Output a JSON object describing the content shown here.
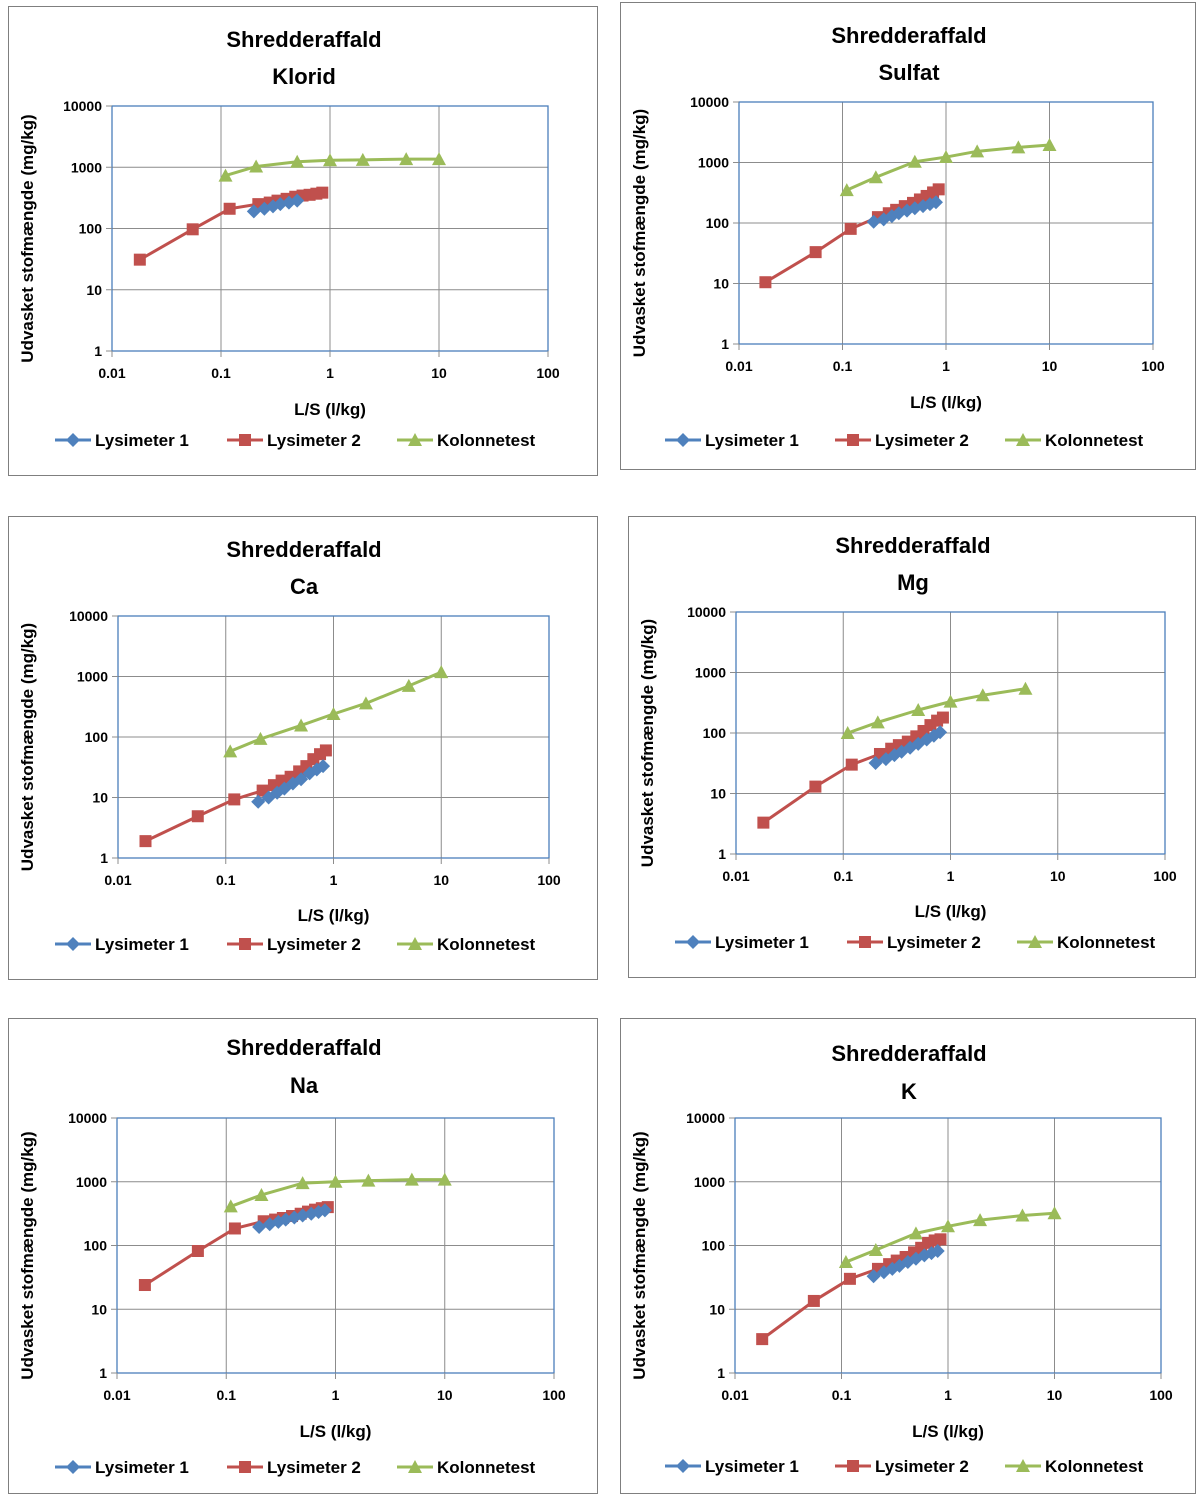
{
  "series_styles": [
    {
      "name": "Lysimeter 1",
      "color": "#4f81bd",
      "marker": "diamond"
    },
    {
      "name": "Lysimeter 2",
      "color": "#c0504d",
      "marker": "square"
    },
    {
      "name": "Kolonnetest",
      "color": "#9bbb59",
      "marker": "triangle"
    }
  ],
  "chart_data": [
    {
      "type": "line",
      "title": [
        "Shredderaffald",
        "Klorid"
      ],
      "xlabel": "L/S (l/kg)",
      "ylabel": "Udvasket stofmængde (mg/kg)",
      "xscale": "log",
      "yscale": "log",
      "xlim": [
        0.01,
        100
      ],
      "ylim": [
        1,
        10000
      ],
      "xticks": [
        "0.01",
        "0.1",
        "1",
        "10",
        "100"
      ],
      "yticks": [
        "1",
        "10",
        "100",
        "1000",
        "10000"
      ],
      "grid": true,
      "legend": "bottom",
      "series": [
        {
          "name": "Lysimeter 1",
          "x": [
            0.2,
            0.25,
            0.3,
            0.35,
            0.42,
            0.5
          ],
          "y": [
            190,
            210,
            230,
            250,
            265,
            285
          ]
        },
        {
          "name": "Lysimeter 2",
          "x": [
            0.018,
            0.055,
            0.12,
            0.22,
            0.28,
            0.33,
            0.4,
            0.48,
            0.56,
            0.65,
            0.75,
            0.85
          ],
          "y": [
            31,
            97,
            210,
            250,
            265,
            285,
            305,
            330,
            345,
            355,
            370,
            385
          ]
        },
        {
          "name": "Kolonnetest",
          "x": [
            0.11,
            0.21,
            0.5,
            1,
            2,
            5,
            10
          ],
          "y": [
            730,
            1030,
            1230,
            1300,
            1320,
            1360,
            1360
          ]
        }
      ]
    },
    {
      "type": "line",
      "title": [
        "Shredderaffald",
        "Sulfat"
      ],
      "xlabel": "L/S (l/kg)",
      "ylabel": "Udvasket stofmængde (mg/kg)",
      "xscale": "log",
      "yscale": "log",
      "xlim": [
        0.01,
        100
      ],
      "ylim": [
        1,
        10000
      ],
      "xticks": [
        "0.01",
        "0.1",
        "1",
        "10",
        "100"
      ],
      "yticks": [
        "1",
        "10",
        "100",
        "1000",
        "10000"
      ],
      "grid": true,
      "legend": "bottom",
      "series": [
        {
          "name": "Lysimeter 1",
          "x": [
            0.2,
            0.25,
            0.3,
            0.35,
            0.42,
            0.5,
            0.6,
            0.7,
            0.8
          ],
          "y": [
            105,
            115,
            130,
            145,
            160,
            175,
            190,
            205,
            220
          ]
        },
        {
          "name": "Lysimeter 2",
          "x": [
            0.018,
            0.055,
            0.12,
            0.22,
            0.28,
            0.33,
            0.4,
            0.48,
            0.56,
            0.65,
            0.75,
            0.85
          ],
          "y": [
            10.5,
            33,
            80,
            125,
            145,
            165,
            190,
            215,
            245,
            280,
            320,
            360
          ]
        },
        {
          "name": "Kolonnetest",
          "x": [
            0.11,
            0.21,
            0.5,
            1,
            2,
            5,
            10
          ],
          "y": [
            350,
            570,
            1030,
            1230,
            1530,
            1780,
            1950
          ]
        }
      ]
    },
    {
      "type": "line",
      "title": [
        "Shredderaffald",
        "Ca"
      ],
      "xlabel": "L/S (l/kg)",
      "ylabel": "Udvasket stofmængde (mg/kg)",
      "xscale": "log",
      "yscale": "log",
      "xlim": [
        0.01,
        100
      ],
      "ylim": [
        1,
        10000
      ],
      "xticks": [
        "0.01",
        "0.1",
        "1",
        "10",
        "100"
      ],
      "yticks": [
        "1",
        "10",
        "100",
        "1000",
        "10000"
      ],
      "grid": true,
      "legend": "bottom",
      "series": [
        {
          "name": "Lysimeter 1",
          "x": [
            0.2,
            0.25,
            0.3,
            0.35,
            0.42,
            0.5,
            0.6,
            0.7,
            0.8
          ],
          "y": [
            8.5,
            10,
            12,
            14,
            17,
            20,
            25,
            29,
            33
          ]
        },
        {
          "name": "Lysimeter 2",
          "x": [
            0.018,
            0.055,
            0.12,
            0.22,
            0.28,
            0.33,
            0.4,
            0.48,
            0.56,
            0.65,
            0.75,
            0.85
          ],
          "y": [
            1.9,
            4.9,
            9.3,
            13,
            16,
            19,
            22,
            27,
            33,
            43,
            52,
            60
          ]
        },
        {
          "name": "Kolonnetest",
          "x": [
            0.11,
            0.21,
            0.5,
            1,
            2,
            5,
            10
          ],
          "y": [
            58,
            93,
            155,
            240,
            360,
            700,
            1180
          ]
        }
      ]
    },
    {
      "type": "line",
      "title": [
        "Shredderaffald",
        "Mg"
      ],
      "xlabel": "L/S (l/kg)",
      "ylabel": "Udvasket stofmængde (mg/kg)",
      "xscale": "log",
      "yscale": "log",
      "xlim": [
        0.01,
        100
      ],
      "ylim": [
        1,
        10000
      ],
      "xticks": [
        "0.01",
        "0.1",
        "1",
        "10",
        "100"
      ],
      "yticks": [
        "1",
        "10",
        "100",
        "1000",
        "10000"
      ],
      "grid": true,
      "legend": "bottom",
      "series": [
        {
          "name": "Lysimeter 1",
          "x": [
            0.2,
            0.25,
            0.3,
            0.35,
            0.42,
            0.5,
            0.6,
            0.7,
            0.8
          ],
          "y": [
            32,
            37,
            43,
            49,
            57,
            66,
            78,
            90,
            103
          ]
        },
        {
          "name": "Lysimeter 2",
          "x": [
            0.018,
            0.055,
            0.12,
            0.22,
            0.28,
            0.33,
            0.4,
            0.48,
            0.56,
            0.65,
            0.75,
            0.85
          ],
          "y": [
            3.3,
            13,
            30,
            45,
            55,
            63,
            72,
            88,
            108,
            135,
            160,
            180
          ]
        },
        {
          "name": "Kolonnetest",
          "x": [
            0.11,
            0.21,
            0.5,
            1,
            2,
            5
          ],
          "y": [
            100,
            150,
            240,
            330,
            420,
            540
          ]
        }
      ]
    },
    {
      "type": "line",
      "title": [
        "Shredderaffald",
        "Na"
      ],
      "xlabel": "L/S (l/kg)",
      "ylabel": "Udvasket stofmængde (mg/kg)",
      "xscale": "log",
      "yscale": "log",
      "xlim": [
        0.01,
        100
      ],
      "ylim": [
        1,
        10000
      ],
      "xticks": [
        "0.01",
        "0.1",
        "1",
        "10",
        "100"
      ],
      "yticks": [
        "1",
        "10",
        "100",
        "1000",
        "10000"
      ],
      "grid": true,
      "legend": "bottom",
      "series": [
        {
          "name": "Lysimeter 1",
          "x": [
            0.2,
            0.25,
            0.3,
            0.35,
            0.42,
            0.5,
            0.6,
            0.7,
            0.8
          ],
          "y": [
            195,
            215,
            235,
            255,
            275,
            295,
            315,
            335,
            355
          ]
        },
        {
          "name": "Lysimeter 2",
          "x": [
            0.018,
            0.055,
            0.12,
            0.22,
            0.28,
            0.33,
            0.4,
            0.48,
            0.56,
            0.65,
            0.75,
            0.85
          ],
          "y": [
            24,
            82,
            185,
            240,
            255,
            270,
            290,
            315,
            340,
            365,
            385,
            400
          ]
        },
        {
          "name": "Kolonnetest",
          "x": [
            0.11,
            0.21,
            0.5,
            1,
            2,
            5,
            10
          ],
          "y": [
            410,
            620,
            950,
            1000,
            1040,
            1080,
            1080
          ]
        }
      ]
    },
    {
      "type": "line",
      "title": [
        "Shredderaffald",
        "K"
      ],
      "xlabel": "L/S (l/kg)",
      "ylabel": "Udvasket stofmængde (mg/kg)",
      "xscale": "log",
      "yscale": "log",
      "xlim": [
        0.01,
        100
      ],
      "ylim": [
        1,
        10000
      ],
      "xticks": [
        "0.01",
        "0.1",
        "1",
        "10",
        "100"
      ],
      "yticks": [
        "1",
        "10",
        "100",
        "1000",
        "10000"
      ],
      "grid": true,
      "legend": "bottom",
      "series": [
        {
          "name": "Lysimeter 1",
          "x": [
            0.2,
            0.25,
            0.3,
            0.35,
            0.42,
            0.5,
            0.6,
            0.7,
            0.8
          ],
          "y": [
            33,
            38,
            43,
            48,
            55,
            62,
            70,
            76,
            82
          ]
        },
        {
          "name": "Lysimeter 2",
          "x": [
            0.018,
            0.055,
            0.12,
            0.22,
            0.28,
            0.33,
            0.4,
            0.48,
            0.56,
            0.65,
            0.75,
            0.85
          ],
          "y": [
            3.4,
            13.5,
            30,
            43,
            51,
            58,
            66,
            78,
            92,
            110,
            120,
            125
          ]
        },
        {
          "name": "Kolonnetest",
          "x": [
            0.11,
            0.21,
            0.5,
            1,
            2,
            5,
            10
          ],
          "y": [
            55,
            85,
            155,
            200,
            250,
            295,
            320
          ]
        }
      ]
    }
  ]
}
